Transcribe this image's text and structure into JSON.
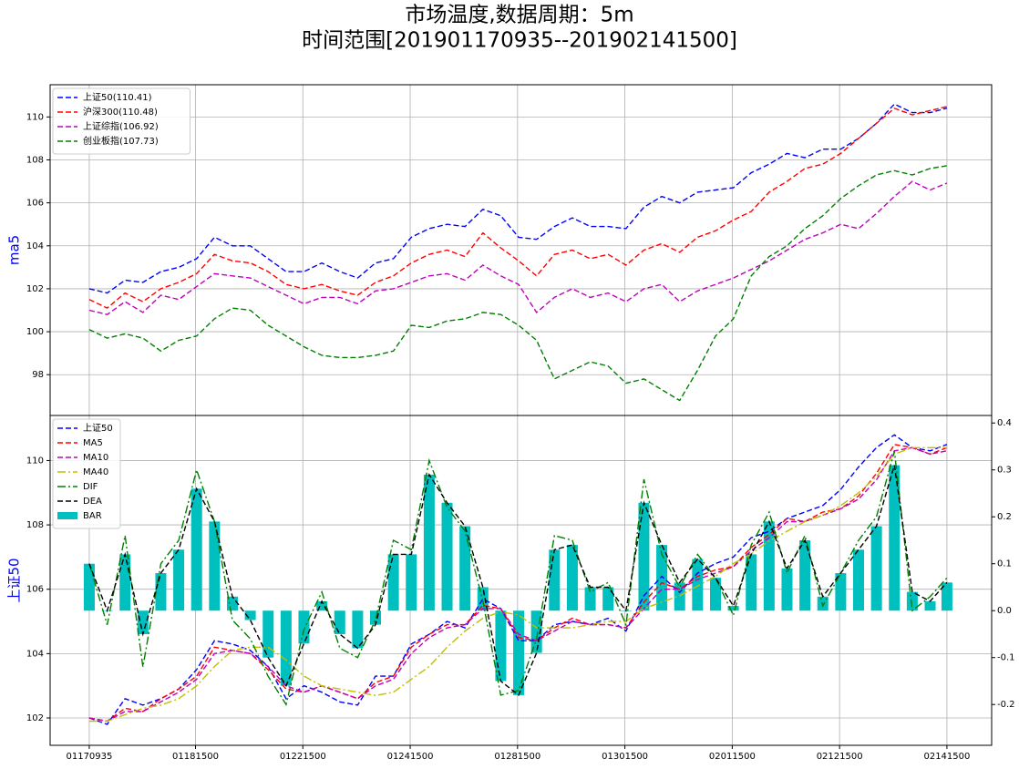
{
  "chart_data": [
    {
      "type": "line",
      "title": "市场温度,数据周期：5m",
      "subtitle": "时间范围[201901170935--201902141500]",
      "ylabel": "ma5",
      "ylabel_color": "#0000ff",
      "grid": true,
      "legend": "upper left",
      "x": [
        0,
        16,
        32,
        48,
        64,
        80,
        96,
        112,
        128,
        144,
        160,
        176,
        192,
        208,
        224,
        240,
        256,
        272,
        288,
        304,
        320,
        336,
        352,
        368,
        384,
        400,
        416,
        432,
        448,
        464,
        480,
        496,
        512,
        528,
        544,
        560,
        576,
        592,
        608,
        624,
        640,
        656,
        672,
        688,
        704,
        720,
        736,
        752,
        767
      ],
      "xlim": [
        -35,
        807
      ],
      "ylim": [
        96.1,
        111.5
      ],
      "yticks": [
        98,
        100,
        102,
        104,
        106,
        108,
        110
      ],
      "series": [
        {
          "name": "上证50(110.41)",
          "color": "#0000ff",
          "style": "dashed",
          "values": [
            102.0,
            101.8,
            102.4,
            102.3,
            102.8,
            103.0,
            103.4,
            104.4,
            104.0,
            104.0,
            103.4,
            102.8,
            102.8,
            103.2,
            102.8,
            102.5,
            103.2,
            103.4,
            104.4,
            104.8,
            105.0,
            104.9,
            105.7,
            105.4,
            104.4,
            104.3,
            104.9,
            105.3,
            104.9,
            104.9,
            104.8,
            105.8,
            106.3,
            106.0,
            106.5,
            106.6,
            106.7,
            107.4,
            107.8,
            108.3,
            108.1,
            108.5,
            108.5,
            109.0,
            109.7,
            110.6,
            110.2,
            110.2,
            110.41
          ]
        },
        {
          "name": "沪深300(110.48)",
          "color": "#ff0000",
          "style": "dashed",
          "values": [
            101.5,
            101.1,
            101.8,
            101.4,
            102.0,
            102.3,
            102.7,
            103.6,
            103.3,
            103.2,
            102.8,
            102.2,
            102.0,
            102.2,
            101.9,
            101.7,
            102.3,
            102.6,
            103.2,
            103.6,
            103.8,
            103.5,
            104.6,
            103.9,
            103.3,
            102.6,
            103.6,
            103.8,
            103.4,
            103.6,
            103.1,
            103.8,
            104.1,
            103.7,
            104.4,
            104.7,
            105.2,
            105.6,
            106.5,
            107.0,
            107.6,
            107.8,
            108.3,
            109.0,
            109.7,
            110.4,
            110.1,
            110.3,
            110.48
          ]
        },
        {
          "name": "上证综指(106.92)",
          "color": "#bf00bf",
          "style": "dashed",
          "values": [
            101.0,
            100.8,
            101.4,
            100.9,
            101.7,
            101.5,
            102.1,
            102.7,
            102.6,
            102.5,
            102.1,
            101.7,
            101.3,
            101.6,
            101.6,
            101.3,
            101.9,
            102.0,
            102.3,
            102.6,
            102.7,
            102.4,
            103.1,
            102.6,
            102.2,
            100.9,
            101.6,
            102.0,
            101.6,
            101.8,
            101.4,
            102.0,
            102.2,
            101.4,
            101.9,
            102.2,
            102.5,
            102.9,
            103.3,
            103.8,
            104.3,
            104.6,
            105.0,
            104.8,
            105.5,
            106.3,
            107.0,
            106.6,
            106.92
          ]
        },
        {
          "name": "创业板指(107.73)",
          "color": "#008000",
          "style": "dashed",
          "values": [
            100.1,
            99.7,
            99.9,
            99.7,
            99.1,
            99.6,
            99.8,
            100.6,
            101.1,
            101.0,
            100.3,
            99.8,
            99.3,
            98.9,
            98.8,
            98.8,
            98.9,
            99.1,
            100.3,
            100.2,
            100.5,
            100.6,
            100.9,
            100.8,
            100.3,
            99.6,
            97.8,
            98.2,
            98.6,
            98.4,
            97.6,
            97.8,
            97.3,
            96.8,
            98.2,
            99.8,
            100.6,
            102.6,
            103.5,
            104.0,
            104.8,
            105.4,
            106.2,
            106.8,
            107.3,
            107.5,
            107.3,
            107.6,
            107.73
          ]
        }
      ]
    },
    {
      "type": "line",
      "ylabel": "上证50",
      "ylabel_color": "#0000ff",
      "grid": true,
      "legend": "upper left",
      "x": [
        0,
        16,
        32,
        48,
        64,
        80,
        96,
        112,
        128,
        144,
        160,
        176,
        192,
        208,
        224,
        240,
        256,
        272,
        288,
        304,
        320,
        336,
        352,
        368,
        384,
        400,
        416,
        432,
        448,
        464,
        480,
        496,
        512,
        528,
        544,
        560,
        576,
        592,
        608,
        624,
        640,
        656,
        672,
        688,
        704,
        720,
        736,
        752,
        767
      ],
      "xlim": [
        -35,
        807
      ],
      "xticks": [
        {
          "value": 0,
          "label": "01170935"
        },
        {
          "value": 95,
          "label": "01181500"
        },
        {
          "value": 191,
          "label": "01221500"
        },
        {
          "value": 287,
          "label": "01241500"
        },
        {
          "value": 383,
          "label": "01281500"
        },
        {
          "value": 479,
          "label": "01301500"
        },
        {
          "value": 575,
          "label": "02011500"
        },
        {
          "value": 671,
          "label": "02121500"
        },
        {
          "value": 767,
          "label": "02141500"
        }
      ],
      "ylim": [
        101.15,
        111.4
      ],
      "yticks": [
        102,
        104,
        106,
        108,
        110
      ],
      "y2lim": [
        -0.287,
        0.416
      ],
      "y2ticks": [
        -0.2,
        -0.1,
        {
          "value": 0,
          "label": "0.0"
        },
        0.1,
        0.2,
        0.3,
        0.4
      ],
      "series": [
        {
          "name": "上证50",
          "color": "#0000ff",
          "style": "dashed",
          "kind": "line",
          "values": [
            102.0,
            101.8,
            102.6,
            102.4,
            102.6,
            102.9,
            103.5,
            104.4,
            104.3,
            104.1,
            103.6,
            102.6,
            103.0,
            102.8,
            102.5,
            102.4,
            103.3,
            103.3,
            104.3,
            104.6,
            105.0,
            104.8,
            105.7,
            105.4,
            104.4,
            104.4,
            104.9,
            105.0,
            104.9,
            105.1,
            104.7,
            105.8,
            106.4,
            105.9,
            106.5,
            106.8,
            107.0,
            107.6,
            107.8,
            108.2,
            108.4,
            108.6,
            109.1,
            109.8,
            110.4,
            110.8,
            110.4,
            110.3,
            110.5
          ]
        },
        {
          "name": "MA5",
          "color": "#ff0000",
          "style": "dashed",
          "kind": "line",
          "values": [
            102.0,
            101.9,
            102.3,
            102.2,
            102.6,
            102.9,
            103.3,
            104.2,
            104.1,
            104.0,
            103.5,
            102.9,
            102.8,
            103.0,
            102.8,
            102.6,
            103.1,
            103.3,
            104.2,
            104.6,
            104.9,
            104.9,
            105.5,
            105.4,
            104.5,
            104.4,
            104.8,
            105.1,
            104.9,
            104.9,
            104.8,
            105.6,
            106.2,
            106.0,
            106.4,
            106.6,
            106.7,
            107.3,
            107.7,
            108.2,
            108.1,
            108.4,
            108.5,
            108.9,
            109.6,
            110.5,
            110.4,
            110.2,
            110.4
          ]
        },
        {
          "name": "MA10",
          "color": "#bf00bf",
          "style": "dashed",
          "kind": "line",
          "values": [
            102.0,
            101.9,
            102.2,
            102.2,
            102.5,
            102.8,
            103.2,
            104.0,
            104.1,
            104.0,
            103.6,
            103.0,
            102.8,
            103.0,
            102.8,
            102.6,
            103.0,
            103.2,
            104.0,
            104.5,
            104.8,
            104.9,
            105.4,
            105.4,
            104.6,
            104.4,
            104.7,
            105.0,
            104.9,
            104.9,
            104.8,
            105.4,
            106.0,
            106.0,
            106.3,
            106.5,
            106.7,
            107.2,
            107.6,
            108.1,
            108.1,
            108.3,
            108.5,
            108.8,
            109.4,
            110.3,
            110.4,
            110.2,
            110.3
          ]
        },
        {
          "name": "MA40",
          "color": "#bfbf00",
          "style": "dashdot",
          "kind": "line",
          "values": [
            101.9,
            101.9,
            102.1,
            102.3,
            102.4,
            102.6,
            103.0,
            103.6,
            104.1,
            104.2,
            104.2,
            103.8,
            103.3,
            103.0,
            102.9,
            102.8,
            102.7,
            102.8,
            103.2,
            103.6,
            104.2,
            104.7,
            105.1,
            105.3,
            105.2,
            104.8,
            104.8,
            104.8,
            104.9,
            105.0,
            105.0,
            105.4,
            105.6,
            105.8,
            106.1,
            106.4,
            106.8,
            107.1,
            107.5,
            107.8,
            108.1,
            108.3,
            108.6,
            109.0,
            109.5,
            110.2,
            110.4,
            110.4,
            110.4
          ]
        },
        {
          "name": "DIF",
          "color": "#008000",
          "style": "dashdot",
          "kind": "line",
          "axis": "y2",
          "values": [
            0.1,
            -0.03,
            0.16,
            -0.12,
            0.1,
            0.15,
            0.3,
            0.19,
            -0.02,
            -0.06,
            -0.14,
            -0.2,
            -0.04,
            0.04,
            -0.08,
            -0.1,
            -0.02,
            0.15,
            0.13,
            0.32,
            0.22,
            0.17,
            0.02,
            -0.18,
            -0.17,
            -0.06,
            0.16,
            0.15,
            0.04,
            0.06,
            -0.03,
            0.28,
            0.12,
            0.05,
            0.12,
            0.07,
            -0.01,
            0.14,
            0.21,
            0.08,
            0.16,
            0.01,
            0.08,
            0.15,
            0.2,
            0.34,
            0.0,
            0.03,
            0.07
          ]
        },
        {
          "name": "DEA",
          "color": "#000000",
          "style": "dashed",
          "kind": "line",
          "axis": "y2",
          "values": [
            0.1,
            0.0,
            0.12,
            -0.05,
            0.08,
            0.13,
            0.26,
            0.19,
            0.03,
            -0.02,
            -0.1,
            -0.16,
            -0.07,
            0.02,
            -0.05,
            -0.08,
            -0.03,
            0.12,
            0.12,
            0.29,
            0.23,
            0.18,
            0.05,
            -0.15,
            -0.18,
            -0.09,
            0.13,
            0.14,
            0.05,
            0.05,
            0.0,
            0.23,
            0.14,
            0.06,
            0.11,
            0.07,
            0.01,
            0.12,
            0.19,
            0.09,
            0.15,
            0.03,
            0.08,
            0.13,
            0.18,
            0.31,
            0.04,
            0.02,
            0.06
          ]
        },
        {
          "name": "BAR",
          "color": "#00bfbf",
          "kind": "bar",
          "axis": "y2",
          "values": [
            0.1,
            0.0,
            0.12,
            -0.05,
            0.08,
            0.13,
            0.26,
            0.19,
            0.03,
            -0.02,
            -0.1,
            -0.16,
            -0.07,
            0.02,
            -0.05,
            -0.08,
            -0.03,
            0.12,
            0.12,
            0.29,
            0.23,
            0.18,
            0.05,
            -0.15,
            -0.18,
            -0.09,
            0.13,
            0.14,
            0.05,
            0.05,
            0.0,
            0.23,
            0.14,
            0.06,
            0.11,
            0.07,
            0.01,
            0.12,
            0.19,
            0.09,
            0.15,
            0.03,
            0.08,
            0.13,
            0.18,
            0.31,
            0.04,
            0.02,
            0.06
          ]
        }
      ]
    }
  ]
}
